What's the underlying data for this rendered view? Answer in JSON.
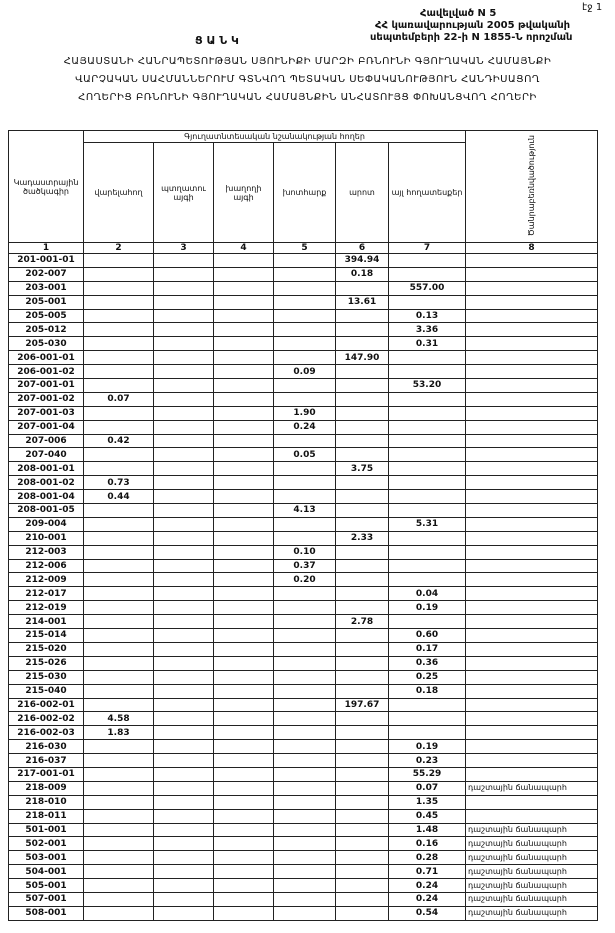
{
  "header": {
    "page": "էջ 1",
    "annex": "Հավելված N 5",
    "decree_line1": "ՀՀ կառավարության 2005 թվականի",
    "decree_line2": "սեպտեմբերի 22-ի N 1855-Ն որոշման",
    "title": "Ց Ա Ն Կ",
    "subtitle_lines": [
      "ՀԱՅԱՍՏԱՆԻ ՀԱՆՐԱՊԵՏՈՒԹՅԱՆ ՍՅՈՒՆԻՔԻ ՄԱՐԶԻ ԲՌՆՈՒՆԻ ԳՅՈՒՂԱԿԱՆ ՀԱՄԱՅՆՔԻ",
      "ՎԱՐՉԱԿԱՆ ՍԱՀՄԱՆՆԵՐՈՒՄ ԳՏՆՎՈՂ ՊԵՏԱԿԱՆ ՍԵՓԱԿԱՆՈՒԹՅՈՒՆ ՀԱՆԴԻՍԱՑՈՂ",
      "ՀՈՂԵՐԻՑ ԲՌՆՈՒՆԻ ԳՅՈՒՂԱԿԱՆ ՀԱՄԱՅՆՔԻՆ ԱՆՀԱՏՈՒՅՑ ՓՈԽԱՆՑՎՈՂ ՀՈՂԵՐԻ"
    ]
  },
  "table": {
    "code_header": "Կադաստրային ծածկագիր",
    "group_header": "Գյուղատնտեսական նշանակության հողեր",
    "column_headers": {
      "c2": "վարելահող",
      "c3": "պտղատու այգի",
      "c4": "խաղողի այգի",
      "c5": "խոտհարք",
      "c6": "արոտ",
      "c7": "այլ հողատեսքեր",
      "c8": "Ծանրաբեռնվածություն"
    },
    "column_numbers": [
      "1",
      "2",
      "3",
      "4",
      "5",
      "6",
      "7",
      "8"
    ],
    "rows": [
      {
        "code": "201-001-01",
        "c6": "394.94"
      },
      {
        "code": "202-007",
        "c6": "0.18"
      },
      {
        "code": "203-001",
        "c7": "557.00"
      },
      {
        "code": "205-001",
        "c6": "13.61"
      },
      {
        "code": "205-005",
        "c7": "0.13"
      },
      {
        "code": "205-012",
        "c7": "3.36"
      },
      {
        "code": "205-030",
        "c7": "0.31"
      },
      {
        "code": "206-001-01",
        "c6": "147.90"
      },
      {
        "code": "206-001-02",
        "c5": "0.09"
      },
      {
        "code": "207-001-01",
        "c7": "53.20"
      },
      {
        "code": "207-001-02",
        "c2": "0.07"
      },
      {
        "code": "207-001-03",
        "c5": "1.90"
      },
      {
        "code": "207-001-04",
        "c5": "0.24"
      },
      {
        "code": "207-006",
        "c2": "0.42"
      },
      {
        "code": "207-040",
        "c5": "0.05"
      },
      {
        "code": "208-001-01",
        "c6": "3.75"
      },
      {
        "code": "208-001-02",
        "c2": "0.73"
      },
      {
        "code": "208-001-04",
        "c2": "0.44"
      },
      {
        "code": "208-001-05",
        "c5": "4.13"
      },
      {
        "code": "209-004",
        "c7": "5.31"
      },
      {
        "code": "210-001",
        "c6": "2.33"
      },
      {
        "code": "212-003",
        "c5": "0.10"
      },
      {
        "code": "212-006",
        "c5": "0.37"
      },
      {
        "code": "212-009",
        "c5": "0.20"
      },
      {
        "code": "212-017",
        "c7": "0.04"
      },
      {
        "code": "212-019",
        "c7": "0.19"
      },
      {
        "code": "214-001",
        "c6": "2.78"
      },
      {
        "code": "215-014",
        "c7": "0.60"
      },
      {
        "code": "215-020",
        "c7": "0.17"
      },
      {
        "code": "215-026",
        "c7": "0.36"
      },
      {
        "code": "215-030",
        "c7": "0.25"
      },
      {
        "code": "215-040",
        "c7": "0.18"
      },
      {
        "code": "216-002-01",
        "c6": "197.67"
      },
      {
        "code": "216-002-02",
        "c2": "4.58"
      },
      {
        "code": "216-002-03",
        "c2": "1.83"
      },
      {
        "code": "216-030",
        "c7": "0.19"
      },
      {
        "code": "216-037",
        "c7": "0.23"
      },
      {
        "code": "217-001-01",
        "c7": "55.29"
      },
      {
        "code": "218-009",
        "c7": "0.07",
        "c8": "դաշտային ճանապարհ"
      },
      {
        "code": "218-010",
        "c7": "1.35"
      },
      {
        "code": "218-011",
        "c7": "0.45"
      },
      {
        "code": "501-001",
        "c7": "1.48",
        "c8": "դաշտային ճանապարհ"
      },
      {
        "code": "502-001",
        "c7": "0.16",
        "c8": "դաշտային ճանապարհ"
      },
      {
        "code": "503-001",
        "c7": "0.28",
        "c8": "դաշտային ճանապարհ"
      },
      {
        "code": "504-001",
        "c7": "0.71",
        "c8": "դաշտային ճանապարհ"
      },
      {
        "code": "505-001",
        "c7": "0.24",
        "c8": "դաշտային ճանապարհ"
      },
      {
        "code": "507-001",
        "c7": "0.24",
        "c8": "դաշտային ճանապարհ"
      },
      {
        "code": "508-001",
        "c7": "0.54",
        "c8": "դաշտային ճանապարհ"
      }
    ]
  }
}
